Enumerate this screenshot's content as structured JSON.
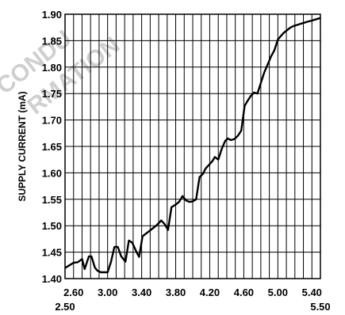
{
  "chart_data": {
    "type": "line",
    "title": "",
    "xlabel": "",
    "ylabel": "SUPPLY CURRENT (mA)",
    "xlim": [
      2.5,
      5.5
    ],
    "ylim": [
      1.4,
      1.9
    ],
    "grid": true,
    "x_ticks_upper": [
      "2.60",
      "3.00",
      "3.40",
      "3.80",
      "4.20",
      "4.60",
      "5.00",
      "5.40"
    ],
    "x_ticks_upper_values": [
      2.6,
      3.0,
      3.4,
      3.8,
      4.2,
      4.6,
      5.0,
      5.4
    ],
    "x_ticks_lower": [
      "2.50",
      "5.50"
    ],
    "x_ticks_lower_values": [
      2.5,
      5.5
    ],
    "y_ticks": [
      "1.40",
      "1.45",
      "1.50",
      "1.55",
      "1.60",
      "1.65",
      "1.70",
      "1.75",
      "1.80",
      "1.85",
      "1.90"
    ],
    "y_ticks_values": [
      1.4,
      1.45,
      1.5,
      1.55,
      1.6,
      1.65,
      1.7,
      1.75,
      1.8,
      1.85,
      1.9
    ],
    "series": [
      {
        "x": [
          2.5,
          2.55,
          2.6,
          2.65,
          2.7,
          2.73,
          2.78,
          2.81,
          2.85,
          2.88,
          2.92,
          2.96,
          3.0,
          3.04,
          3.08,
          3.12,
          3.16,
          3.21,
          3.25,
          3.29,
          3.34,
          3.37,
          3.41,
          3.45,
          3.49,
          3.53,
          3.57,
          3.6,
          3.63,
          3.67,
          3.71,
          3.75,
          3.8,
          3.84,
          3.88,
          3.92,
          3.96,
          4.0,
          4.04,
          4.08,
          4.12,
          4.15,
          4.19,
          4.23,
          4.26,
          4.3,
          4.34,
          4.38,
          4.41,
          4.45,
          4.49,
          4.53,
          4.57,
          4.61,
          4.64,
          4.68,
          4.72,
          4.76,
          4.8,
          4.84,
          4.88,
          4.92,
          4.96,
          5.0,
          5.03,
          5.07,
          5.11,
          5.15,
          5.19,
          5.23,
          5.27,
          5.31,
          5.35,
          5.4,
          5.44,
          5.48,
          5.5
        ],
        "y": [
          1.42,
          1.425,
          1.43,
          1.431,
          1.437,
          1.418,
          1.442,
          1.442,
          1.421,
          1.415,
          1.412,
          1.412,
          1.412,
          1.432,
          1.46,
          1.46,
          1.442,
          1.432,
          1.472,
          1.468,
          1.45,
          1.441,
          1.48,
          1.485,
          1.49,
          1.495,
          1.5,
          1.505,
          1.51,
          1.503,
          1.492,
          1.535,
          1.54,
          1.545,
          1.556,
          1.548,
          1.545,
          1.546,
          1.55,
          1.592,
          1.598,
          1.608,
          1.615,
          1.622,
          1.63,
          1.625,
          1.645,
          1.66,
          1.665,
          1.662,
          1.664,
          1.67,
          1.68,
          1.727,
          1.735,
          1.745,
          1.752,
          1.75,
          1.77,
          1.79,
          1.805,
          1.82,
          1.832,
          1.852,
          1.858,
          1.865,
          1.87,
          1.875,
          1.878,
          1.88,
          1.882,
          1.884,
          1.886,
          1.888,
          1.89,
          1.892,
          1.893
        ]
      }
    ]
  },
  "watermark": {
    "lines": [
      "CONDU",
      "RMATION"
    ]
  }
}
